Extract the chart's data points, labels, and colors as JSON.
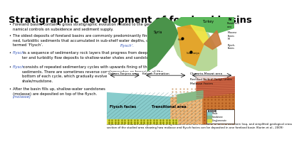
{
  "title": "Stratigraphic development of foreland basins",
  "title_fontsize": 9.5,
  "background_color": "#ffffff",
  "text_color": "#000000",
  "highlight_color": "#3355bb",
  "bullet_points": [
    "Foreland basins contain a gross stratigraphic evolution related to the geody-\nnamical controls on subsidence and sediment supply.",
    "The oldest deposits of foreland basins are commonly predominantly fine-grai-\nned, turbiditic sediments that accumulated in sub-shelf water depths, commonly\ntermed ‘Flysch’.",
    "Flysch is a sequence of sedimentary rock layers that progress from deep-wa-\nter and turbidity flow deposits to shallow-water shales and sandstones.",
    "Flysch consists of repeated sedimentary cycles with upwards fining of the\nsediments. There are sometimes reverse conglomerates or breccias at the\nbottom of each cycle, which gradually evolve upwards into sandstone and\nshale/mudstone.",
    "After the basin fills up, shallow-water sandstones and continental sediments\n(molasse) are deposited on top of the flysch."
  ],
  "caption": "Deposition of molasse and flysch facies during Maastrichtian and Paleocene in the northeastern Iraq, and simplified geological cross\nsection of the studied area showing how molasse and flysch facies can be deposited in one foreland basin (Karim et al., 2009)",
  "map_bg": "#b3d9f7",
  "turkey_green": "#5cb85c",
  "syria_green": "#4a934a",
  "band_yellow": "#f5e642",
  "band_orange": "#e8a020",
  "band_brown": "#c97a3a",
  "cs_bg": "#ddeeff",
  "cs_flysch_blue": "#88cccc",
  "cs_trans_peach": "#f0b87a",
  "cs_molasse_orange": "#cc7733",
  "cs_congl_yellow": "#dddd44",
  "cs_redbed": "#cc6644",
  "cs_green": "#88bb88",
  "legend_shale_color": "#88cccc",
  "legend_sandstone_color": "#88bb88",
  "legend_congl_color": "#dddd44"
}
